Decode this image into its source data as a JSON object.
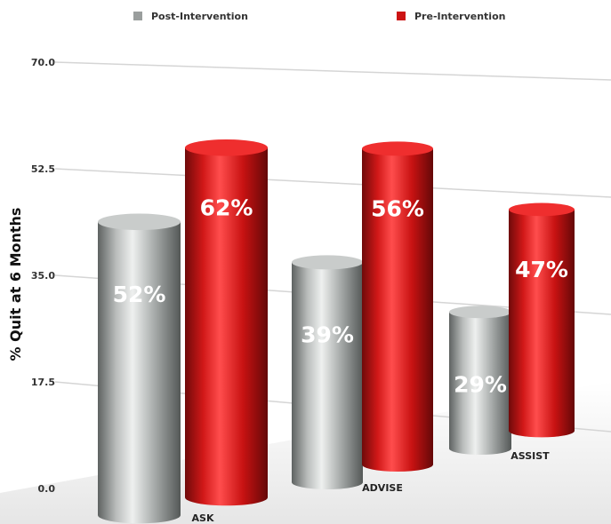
{
  "chart_data": {
    "type": "bar",
    "categories": [
      "ASK",
      "ADVISE",
      "ASSIST"
    ],
    "series": [
      {
        "name": "Post-Intervention",
        "values": [
          52,
          39,
          29
        ],
        "labels": [
          "52%",
          "39%",
          "29%"
        ],
        "color": "#9a9e9d"
      },
      {
        "name": "Pre-Intervention",
        "values": [
          62,
          56,
          47
        ],
        "labels": [
          "62%",
          "56%",
          "47%"
        ],
        "color": "#cc1313"
      }
    ],
    "ylabel": "% Quit at 6 Months",
    "xlabel": "",
    "title": "",
    "ylim": [
      0,
      70
    ],
    "yticks": [
      "0.0",
      "17.5",
      "35.0",
      "52.5",
      "70.0"
    ],
    "grid": true,
    "legend": "top",
    "style": "3d cylinders"
  }
}
